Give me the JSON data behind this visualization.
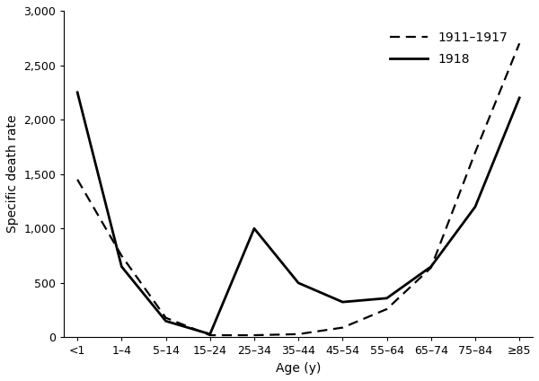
{
  "age_labels": [
    "<1",
    "1–4",
    "5–14",
    "15–24",
    "25–34",
    "35–44",
    "45–54",
    "55–64",
    "65–74",
    "75–84",
    "≥85"
  ],
  "x_positions": [
    0,
    1,
    2,
    3,
    4,
    5,
    6,
    7,
    8,
    9,
    10
  ],
  "line_1911": [
    1450,
    750,
    180,
    20,
    20,
    30,
    90,
    260,
    640,
    1700,
    2700
  ],
  "line_1918": [
    2250,
    650,
    150,
    30,
    1000,
    500,
    325,
    360,
    650,
    1200,
    2200
  ],
  "xlabel": "Age (y)",
  "ylabel": "Specific death rate",
  "ylim": [
    0,
    3000
  ],
  "yticks": [
    0,
    500,
    1000,
    1500,
    2000,
    2500,
    3000
  ],
  "legend_1911": "1911–1917",
  "legend_1918": "1918",
  "line_color": "#000000",
  "background_color": "#ffffff",
  "fig_width": 6.0,
  "fig_height": 4.24,
  "dpi": 100
}
